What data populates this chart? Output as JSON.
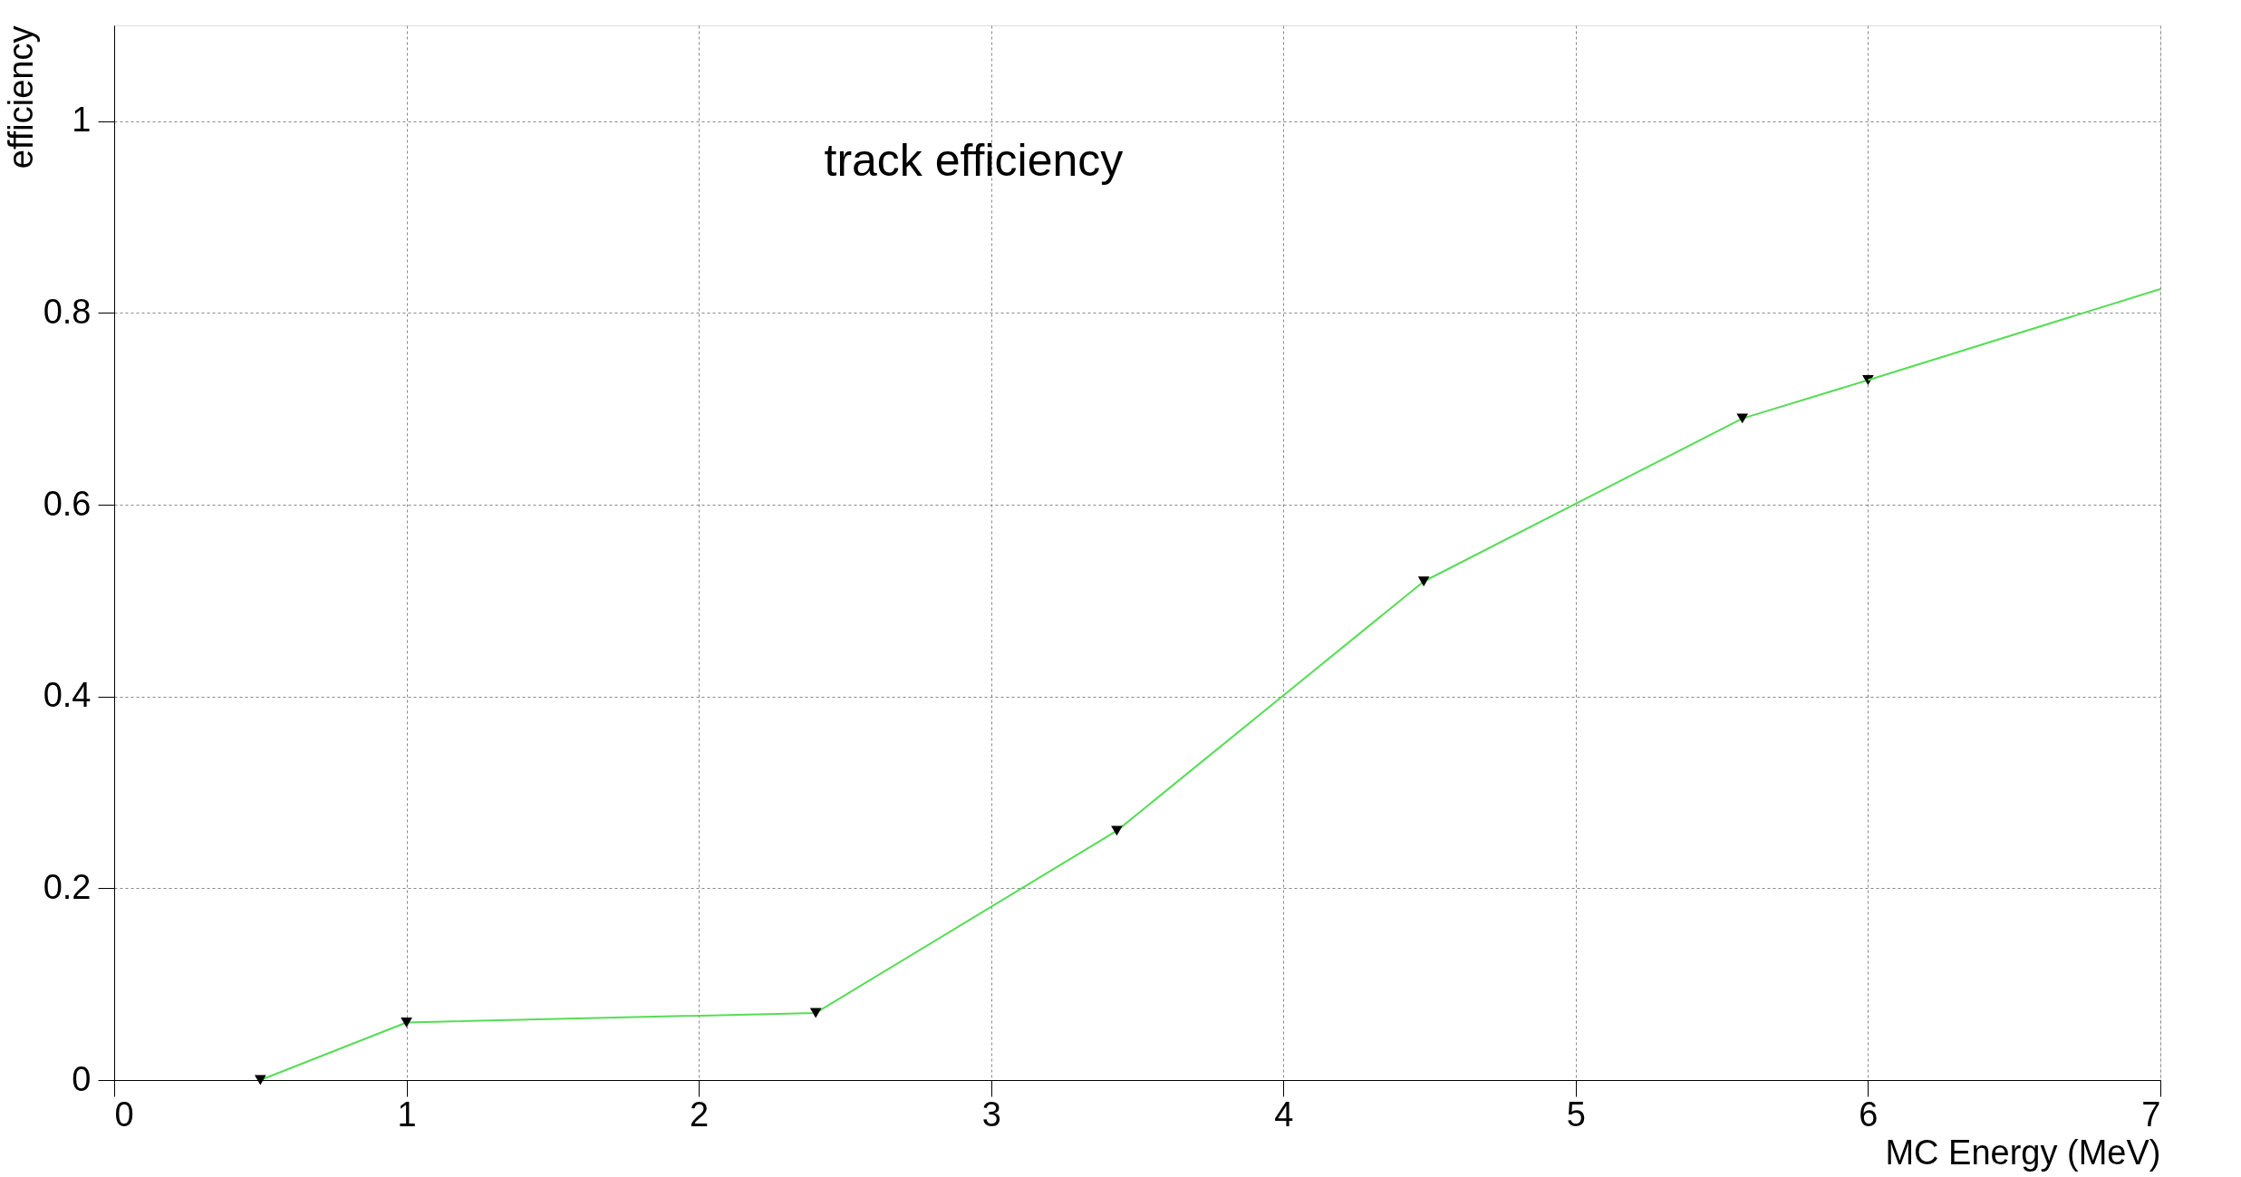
{
  "chart_data": {
    "type": "line",
    "xlabel": "MC Energy (MeV)",
    "ylabel": "efficiency",
    "annotations": [
      "track efficiency"
    ],
    "x": [
      0.5,
      1.0,
      2.4,
      3.43,
      4.48,
      5.57,
      6.0
    ],
    "series": [
      {
        "color": "#55dd55",
        "values": [
          0.0,
          0.06,
          0.07,
          0.26,
          0.52,
          0.69,
          0.73
        ],
        "marker": "triangle"
      },
      {
        "type": "line",
        "color": "#55dd55",
        "x": [
          6.0,
          7.0
        ],
        "values": [
          0.73,
          0.825
        ],
        "marker": "none"
      }
    ],
    "xlim": [
      0,
      7
    ],
    "xticks": [
      0,
      1,
      2,
      3,
      4,
      5,
      6,
      7
    ],
    "ylim": [
      0,
      1.1
    ],
    "yticks": [
      0,
      0.2,
      0.4,
      0.6,
      0.8,
      1
    ],
    "grid": true
  }
}
